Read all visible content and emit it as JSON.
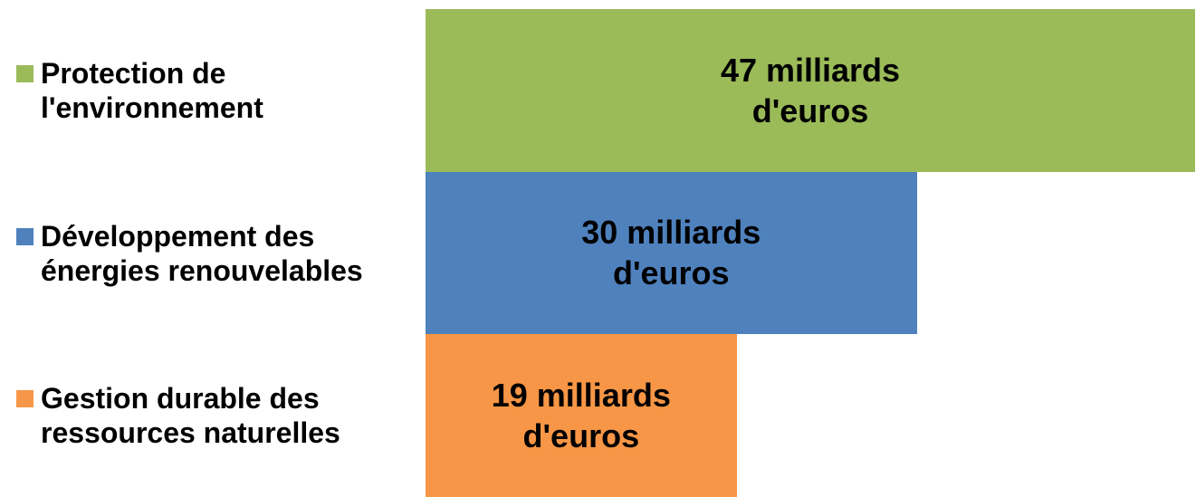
{
  "chart_data": {
    "type": "bar",
    "orientation": "horizontal",
    "categories": [
      "Protection de l'environnement",
      "Développement des énergies renouvelables",
      "Gestion durable des ressources naturelles"
    ],
    "values": [
      47,
      30,
      19
    ],
    "value_labels": [
      "47 milliards d'euros",
      "30 milliards d'euros",
      "19 milliards d'euros"
    ],
    "colors": [
      "#9bbb59",
      "#4f81bd",
      "#f79646"
    ]
  }
}
